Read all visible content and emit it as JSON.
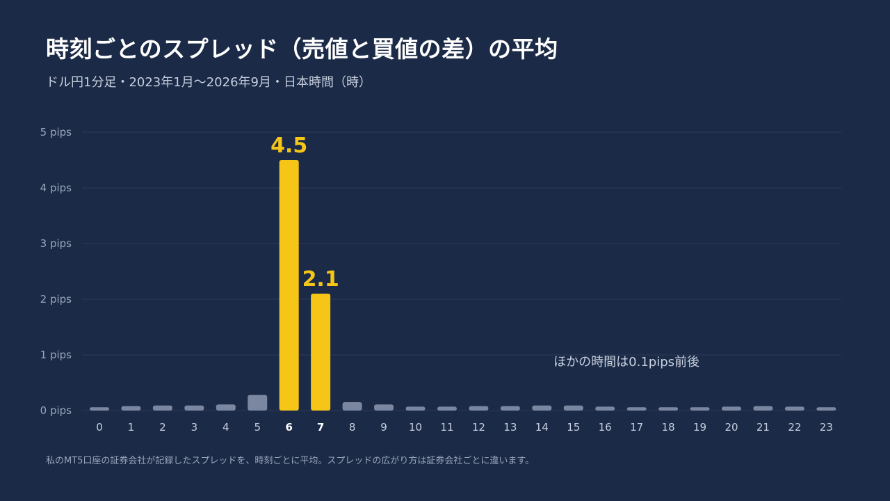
{
  "title": "時刻ごとのスプレッド（売値と買値の差）の平均",
  "subtitle": "ドル円1分足・2023年1月〜2026年9月・日本時間（時）",
  "footnote": "私のMT5口座の証券会社が記録したスプレッドを、時刻ごとに平均。スプレッドの広がり方は証券会社ごとに違います。",
  "colors": {
    "background": "#1b2a47",
    "bar_default": "#7b87a1",
    "bar_highlight": "#f5c518",
    "grid": "#2c3b58",
    "axis_text": "#9aa6bc"
  },
  "chart_data": {
    "type": "bar",
    "categories": [
      "0",
      "1",
      "2",
      "3",
      "4",
      "5",
      "6",
      "7",
      "8",
      "9",
      "10",
      "11",
      "12",
      "13",
      "14",
      "15",
      "16",
      "17",
      "18",
      "19",
      "20",
      "21",
      "22",
      "23"
    ],
    "values": [
      0.06,
      0.08,
      0.09,
      0.09,
      0.11,
      0.28,
      4.5,
      2.1,
      0.15,
      0.11,
      0.07,
      0.07,
      0.08,
      0.08,
      0.09,
      0.09,
      0.07,
      0.06,
      0.06,
      0.06,
      0.07,
      0.08,
      0.07,
      0.06
    ],
    "highlight_categories": [
      "6",
      "7"
    ],
    "data_labels": [
      {
        "category": "6",
        "text": "4.5"
      },
      {
        "category": "7",
        "text": "2.1"
      }
    ],
    "yticks": [
      {
        "value": 0,
        "label": "0 pips"
      },
      {
        "value": 1,
        "label": "1 pips"
      },
      {
        "value": 2,
        "label": "2 pips"
      },
      {
        "value": 3,
        "label": "3 pips"
      },
      {
        "value": 4,
        "label": "4 pips"
      },
      {
        "value": 5,
        "label": "5 pips"
      }
    ],
    "ylim": [
      0,
      5
    ],
    "grid": true,
    "annotation": {
      "text": "ほかの時間は0.1pips前後",
      "x_category": "18",
      "y_value": 0.95
    }
  }
}
